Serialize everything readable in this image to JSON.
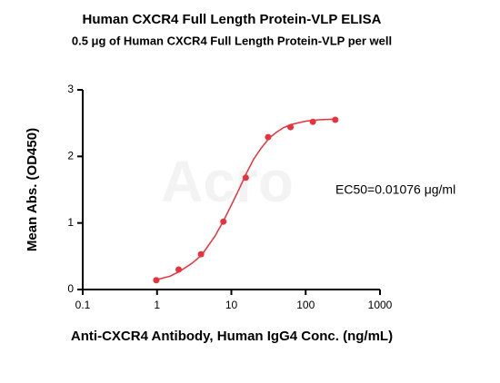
{
  "chart_data": {
    "type": "scatter-fit",
    "title": "Human CXCR4 Full Length Protein-VLP ELISA",
    "subtitle": "0.5 μg of Human CXCR4 Full Length Protein-VLP per well",
    "x_label": "Anti-CXCR4 Antibody, Human IgG4 Conc. (ng/mL)",
    "y_label": "Mean Abs. (OD450)",
    "annotation": "EC50=0.01076 μg/ml",
    "watermark": "Acro",
    "x_scale": "log",
    "xlim": [
      0.1,
      1000
    ],
    "xticks": [
      0.1,
      1,
      10,
      100,
      1000
    ],
    "ylim": [
      0,
      3
    ],
    "yticks": [
      0,
      1,
      2,
      3
    ],
    "series": [
      {
        "style": "markers",
        "color": "#e8323c",
        "x": [
          0.977,
          1.953,
          3.906,
          7.813,
          15.625,
          31.25,
          62.5,
          125,
          250
        ],
        "values": [
          0.14,
          0.3,
          0.53,
          1.02,
          1.68,
          2.29,
          2.44,
          2.52,
          2.55
        ]
      },
      {
        "style": "line",
        "color": "#e8323c",
        "x": [
          1,
          1.5,
          2,
          3,
          4,
          6,
          8,
          10,
          12,
          16,
          20,
          25,
          32,
          40,
          50,
          64,
          100,
          150,
          250
        ],
        "values": [
          0.15,
          0.2,
          0.27,
          0.4,
          0.52,
          0.8,
          1.05,
          1.27,
          1.45,
          1.75,
          1.96,
          2.12,
          2.27,
          2.36,
          2.43,
          2.48,
          2.53,
          2.55,
          2.56
        ]
      }
    ]
  }
}
